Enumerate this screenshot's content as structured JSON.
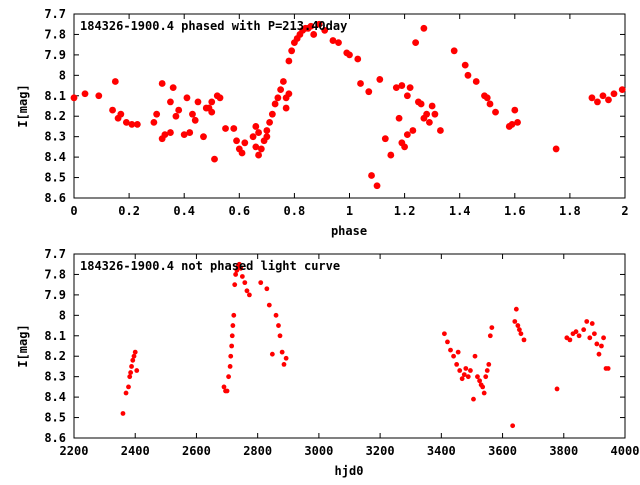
{
  "chart_data": [
    {
      "type": "scatter",
      "title": "184326-1900.4 phased with P=213.40day",
      "xlabel": "phase",
      "ylabel": "I[mag]",
      "xlim": [
        0,
        2
      ],
      "ylim": [
        7.7,
        8.6
      ],
      "y_inverted": true,
      "x_ticks": [
        "0",
        "0.2",
        "0.4",
        "0.6",
        "0.8",
        "1",
        "1.2",
        "1.4",
        "1.6",
        "1.8",
        "2"
      ],
      "y_ticks": [
        "7.7",
        "7.8",
        "7.9",
        "8",
        "8.1",
        "8.2",
        "8.3",
        "8.4",
        "8.5",
        "8.6"
      ],
      "marker_color": "#ff0000",
      "points": [
        [
          0.0,
          8.11
        ],
        [
          0.04,
          8.09
        ],
        [
          0.09,
          8.1
        ],
        [
          0.15,
          8.03
        ],
        [
          0.14,
          8.17
        ],
        [
          0.16,
          8.21
        ],
        [
          0.17,
          8.19
        ],
        [
          0.19,
          8.23
        ],
        [
          0.21,
          8.24
        ],
        [
          0.23,
          8.24
        ],
        [
          0.29,
          8.23
        ],
        [
          0.3,
          8.19
        ],
        [
          0.32,
          8.04
        ],
        [
          0.32,
          8.31
        ],
        [
          0.33,
          8.29
        ],
        [
          0.35,
          8.28
        ],
        [
          0.35,
          8.13
        ],
        [
          0.36,
          8.06
        ],
        [
          0.37,
          8.2
        ],
        [
          0.38,
          8.17
        ],
        [
          0.4,
          8.29
        ],
        [
          0.41,
          8.11
        ],
        [
          0.42,
          8.28
        ],
        [
          0.43,
          8.19
        ],
        [
          0.44,
          8.22
        ],
        [
          0.45,
          8.13
        ],
        [
          0.47,
          8.3
        ],
        [
          0.48,
          8.16
        ],
        [
          0.49,
          8.16
        ],
        [
          0.5,
          8.18
        ],
        [
          0.5,
          8.13
        ],
        [
          0.51,
          8.41
        ],
        [
          0.52,
          8.1
        ],
        [
          0.53,
          8.11
        ],
        [
          0.55,
          8.26
        ],
        [
          0.58,
          8.26
        ],
        [
          0.59,
          8.32
        ],
        [
          0.6,
          8.36
        ],
        [
          0.61,
          8.38
        ],
        [
          0.62,
          8.33
        ],
        [
          0.65,
          8.3
        ],
        [
          0.66,
          8.25
        ],
        [
          0.66,
          8.35
        ],
        [
          0.67,
          8.39
        ],
        [
          0.67,
          8.28
        ],
        [
          0.68,
          8.36
        ],
        [
          0.69,
          8.32
        ],
        [
          0.7,
          8.27
        ],
        [
          0.7,
          8.3
        ],
        [
          0.71,
          8.23
        ],
        [
          0.72,
          8.19
        ],
        [
          0.73,
          8.14
        ],
        [
          0.74,
          8.11
        ],
        [
          0.75,
          8.07
        ],
        [
          0.76,
          8.03
        ],
        [
          0.77,
          8.11
        ],
        [
          0.77,
          8.16
        ],
        [
          0.78,
          8.09
        ],
        [
          0.78,
          7.93
        ],
        [
          0.79,
          7.88
        ],
        [
          0.8,
          7.84
        ],
        [
          0.81,
          7.82
        ],
        [
          0.82,
          7.8
        ],
        [
          0.83,
          7.78
        ],
        [
          0.84,
          7.77
        ],
        [
          0.85,
          7.77
        ],
        [
          0.86,
          7.76
        ],
        [
          0.87,
          7.8
        ],
        [
          0.89,
          7.75
        ],
        [
          0.91,
          7.78
        ],
        [
          0.94,
          7.83
        ],
        [
          0.96,
          7.84
        ],
        [
          0.99,
          7.89
        ],
        [
          1.0,
          7.9
        ],
        [
          1.03,
          7.92
        ],
        [
          1.04,
          8.04
        ],
        [
          1.07,
          8.08
        ],
        [
          1.08,
          8.49
        ],
        [
          1.1,
          8.54
        ],
        [
          1.11,
          8.02
        ],
        [
          1.13,
          8.31
        ],
        [
          1.15,
          8.39
        ],
        [
          1.17,
          8.06
        ],
        [
          1.18,
          8.21
        ],
        [
          1.19,
          8.33
        ],
        [
          1.19,
          8.05
        ],
        [
          1.2,
          8.35
        ],
        [
          1.21,
          8.29
        ],
        [
          1.21,
          8.1
        ],
        [
          1.22,
          8.06
        ],
        [
          1.23,
          8.27
        ],
        [
          1.24,
          7.84
        ],
        [
          1.25,
          8.13
        ],
        [
          1.26,
          8.14
        ],
        [
          1.27,
          7.77
        ],
        [
          1.27,
          8.21
        ],
        [
          1.28,
          8.19
        ],
        [
          1.29,
          8.23
        ],
        [
          1.3,
          8.15
        ],
        [
          1.31,
          8.19
        ],
        [
          1.33,
          8.27
        ],
        [
          1.38,
          7.88
        ],
        [
          1.42,
          7.95
        ],
        [
          1.43,
          8.0
        ],
        [
          1.46,
          8.03
        ],
        [
          1.49,
          8.1
        ],
        [
          1.5,
          8.11
        ],
        [
          1.51,
          8.14
        ],
        [
          1.53,
          8.18
        ],
        [
          1.58,
          8.25
        ],
        [
          1.59,
          8.24
        ],
        [
          1.61,
          8.23
        ],
        [
          1.6,
          8.17
        ],
        [
          1.75,
          8.36
        ],
        [
          1.88,
          8.11
        ],
        [
          1.9,
          8.13
        ],
        [
          1.92,
          8.1
        ],
        [
          1.94,
          8.12
        ],
        [
          1.96,
          8.09
        ],
        [
          1.99,
          8.07
        ]
      ]
    },
    {
      "type": "scatter",
      "title": "184326-1900.4 not phased light curve",
      "xlabel": "hjd0",
      "ylabel": "I[mag]",
      "xlim": [
        2200,
        4000
      ],
      "ylim": [
        7.7,
        8.6
      ],
      "y_inverted": true,
      "x_ticks": [
        "2200",
        "2400",
        "2600",
        "2800",
        "3000",
        "3200",
        "3400",
        "3600",
        "3800",
        "4000"
      ],
      "y_ticks": [
        "7.7",
        "7.8",
        "7.9",
        "8",
        "8.1",
        "8.2",
        "8.3",
        "8.4",
        "8.5",
        "8.6"
      ],
      "marker_color": "#ff0000",
      "points": [
        [
          2360,
          8.48
        ],
        [
          2370,
          8.38
        ],
        [
          2378,
          8.35
        ],
        [
          2382,
          8.3
        ],
        [
          2385,
          8.28
        ],
        [
          2388,
          8.25
        ],
        [
          2392,
          8.22
        ],
        [
          2396,
          8.2
        ],
        [
          2400,
          8.18
        ],
        [
          2405,
          8.27
        ],
        [
          2690,
          8.35
        ],
        [
          2695,
          8.37
        ],
        [
          2700,
          8.37
        ],
        [
          2705,
          8.3
        ],
        [
          2710,
          8.25
        ],
        [
          2712,
          8.2
        ],
        [
          2715,
          8.15
        ],
        [
          2717,
          8.1
        ],
        [
          2719,
          8.05
        ],
        [
          2722,
          8.0
        ],
        [
          2725,
          7.85
        ],
        [
          2728,
          7.8
        ],
        [
          2732,
          7.78
        ],
        [
          2736,
          7.76
        ],
        [
          2740,
          7.75
        ],
        [
          2745,
          7.77
        ],
        [
          2750,
          7.81
        ],
        [
          2758,
          7.84
        ],
        [
          2765,
          7.88
        ],
        [
          2773,
          7.9
        ],
        [
          2810,
          7.84
        ],
        [
          2830,
          7.87
        ],
        [
          2838,
          7.95
        ],
        [
          2848,
          8.19
        ],
        [
          2860,
          8.0
        ],
        [
          2868,
          8.05
        ],
        [
          2873,
          8.1
        ],
        [
          2880,
          8.18
        ],
        [
          2886,
          8.24
        ],
        [
          2893,
          8.21
        ],
        [
          3410,
          8.09
        ],
        [
          3420,
          8.13
        ],
        [
          3430,
          8.17
        ],
        [
          3440,
          8.2
        ],
        [
          3450,
          8.24
        ],
        [
          3455,
          8.18
        ],
        [
          3460,
          8.27
        ],
        [
          3468,
          8.31
        ],
        [
          3475,
          8.29
        ],
        [
          3480,
          8.26
        ],
        [
          3488,
          8.3
        ],
        [
          3495,
          8.27
        ],
        [
          3505,
          8.41
        ],
        [
          3510,
          8.2
        ],
        [
          3518,
          8.3
        ],
        [
          3525,
          8.32
        ],
        [
          3530,
          8.34
        ],
        [
          3535,
          8.35
        ],
        [
          3540,
          8.38
        ],
        [
          3545,
          8.3
        ],
        [
          3550,
          8.27
        ],
        [
          3555,
          8.24
        ],
        [
          3560,
          8.1
        ],
        [
          3565,
          8.06
        ],
        [
          3633,
          8.54
        ],
        [
          3640,
          8.03
        ],
        [
          3645,
          7.97
        ],
        [
          3650,
          8.05
        ],
        [
          3655,
          8.07
        ],
        [
          3660,
          8.09
        ],
        [
          3670,
          8.12
        ],
        [
          3778,
          8.36
        ],
        [
          3810,
          8.11
        ],
        [
          3820,
          8.12
        ],
        [
          3830,
          8.09
        ],
        [
          3840,
          8.08
        ],
        [
          3850,
          8.1
        ],
        [
          3865,
          8.07
        ],
        [
          3875,
          8.03
        ],
        [
          3885,
          8.11
        ],
        [
          3893,
          8.04
        ],
        [
          3900,
          8.09
        ],
        [
          3908,
          8.14
        ],
        [
          3915,
          8.19
        ],
        [
          3923,
          8.15
        ],
        [
          3930,
          8.11
        ],
        [
          3938,
          8.26
        ],
        [
          3945,
          8.26
        ]
      ]
    }
  ]
}
